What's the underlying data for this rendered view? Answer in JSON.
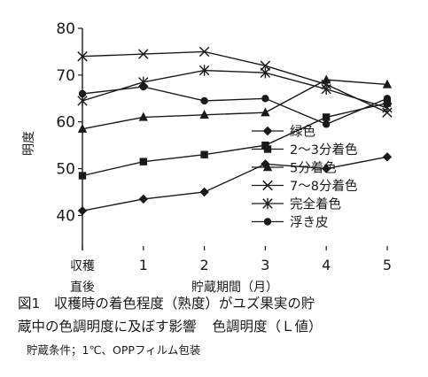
{
  "chart_data": {
    "type": "line",
    "ylabel": "明度",
    "xlabel": "貯蔵期間（月）",
    "x": [
      0,
      1,
      2,
      3,
      4,
      5
    ],
    "xtick_labels": [
      "収穫",
      "1",
      "2",
      "3",
      "4",
      "5"
    ],
    "x0_sublabel": "直後",
    "yticks": [
      40,
      50,
      60,
      70,
      80
    ],
    "ylim": [
      38,
      80
    ],
    "grid": false,
    "legend_position": "lower-right",
    "series": [
      {
        "name": "緑色",
        "marker": "diamond",
        "values": [
          41,
          43.5,
          45,
          51,
          50,
          52.5
        ]
      },
      {
        "name": "2～3分着色",
        "marker": "square",
        "values": [
          48.5,
          51.5,
          53,
          55,
          61,
          64
        ]
      },
      {
        "name": "5分着色",
        "marker": "triangle",
        "values": [
          58.5,
          61,
          61.5,
          62,
          69,
          68
        ]
      },
      {
        "name": "7～8分着色",
        "marker": "x",
        "values": [
          74,
          74.5,
          75,
          72,
          68,
          62
        ]
      },
      {
        "name": "完全着色",
        "marker": "asterisk",
        "values": [
          64.5,
          68.5,
          71,
          70.5,
          67,
          63
        ]
      },
      {
        "name": "浮き皮",
        "marker": "circle",
        "values": [
          66,
          67.5,
          64.5,
          65,
          59.5,
          65
        ]
      }
    ]
  },
  "caption": {
    "line1": "図1　収穫時の着色程度（熟度）がユズ果実の貯",
    "line2_main": "蔵中の色調明度に及ぼす影響",
    "line2_sub": "色調明度（Ｌ値）",
    "condition": "貯蔵条件；1℃、OPPフィルム包装"
  }
}
